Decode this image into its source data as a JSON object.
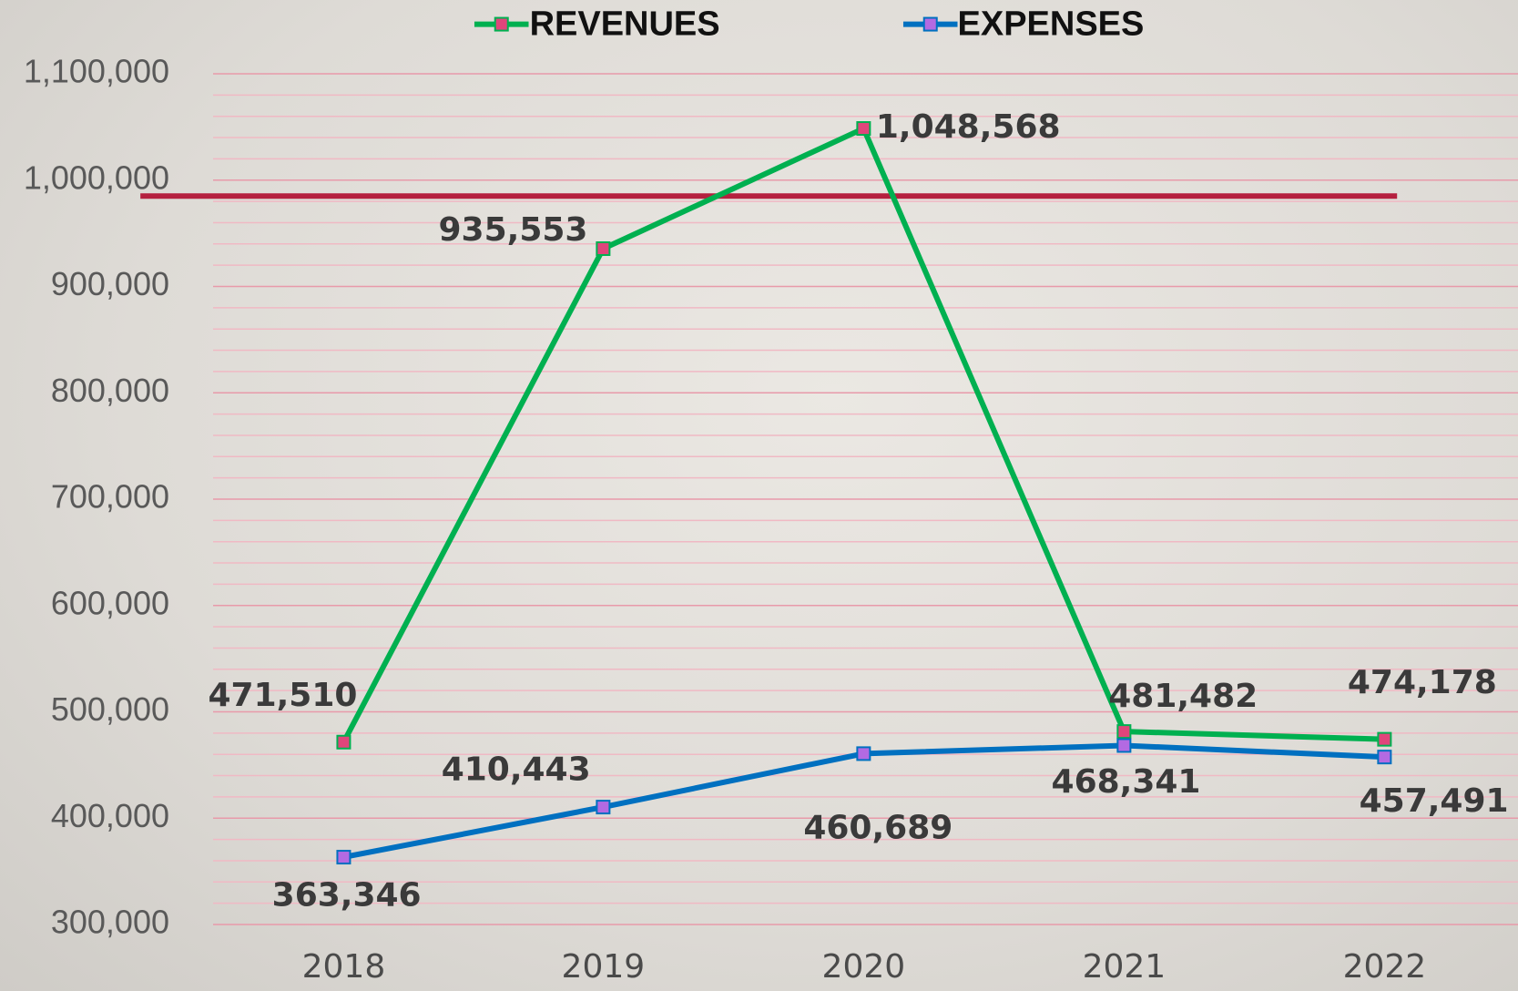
{
  "chart_data": {
    "type": "line",
    "categories": [
      "2018",
      "2019",
      "2020",
      "2021",
      "2022"
    ],
    "series": [
      {
        "name": "REVENUES",
        "color": "#00b050",
        "marker_color": "#e0457b",
        "values": [
          471510,
          935553,
          1048568,
          481482,
          474178
        ],
        "value_labels": [
          "471,510",
          "935,553",
          "1,048,568",
          "481,482",
          "474,178"
        ]
      },
      {
        "name": "EXPENSES",
        "color": "#0070c0",
        "marker_color": "#b36ae2",
        "values": [
          363346,
          410443,
          460689,
          468341,
          457491
        ],
        "value_labels": [
          "363,346",
          "410,443",
          "460,689",
          "468,341",
          "457,491"
        ]
      }
    ],
    "ylim": [
      300000,
      1100000
    ],
    "yticks": [
      {
        "value": 300000,
        "label": "300,000"
      },
      {
        "value": 400000,
        "label": "400,000"
      },
      {
        "value": 500000,
        "label": "500,000"
      },
      {
        "value": 600000,
        "label": "600,000"
      },
      {
        "value": 700000,
        "label": "700,000"
      },
      {
        "value": 800000,
        "label": "800,000"
      },
      {
        "value": 900000,
        "label": "900,000"
      },
      {
        "value": 1000000,
        "label": "1,000,000"
      },
      {
        "value": 1100000,
        "label": "1,100,000"
      }
    ],
    "minor_yticks": [
      320000,
      340000,
      360000,
      380000,
      420000,
      440000,
      460000,
      480000,
      520000,
      540000,
      560000,
      580000,
      620000,
      640000,
      660000,
      680000,
      720000,
      740000,
      760000,
      780000,
      820000,
      840000,
      860000,
      880000,
      920000,
      940000,
      960000,
      980000,
      1020000,
      1040000,
      1060000,
      1080000
    ],
    "grid": true,
    "reference_line": {
      "value": 985000,
      "color": "#b5203f"
    },
    "legend": "top"
  }
}
